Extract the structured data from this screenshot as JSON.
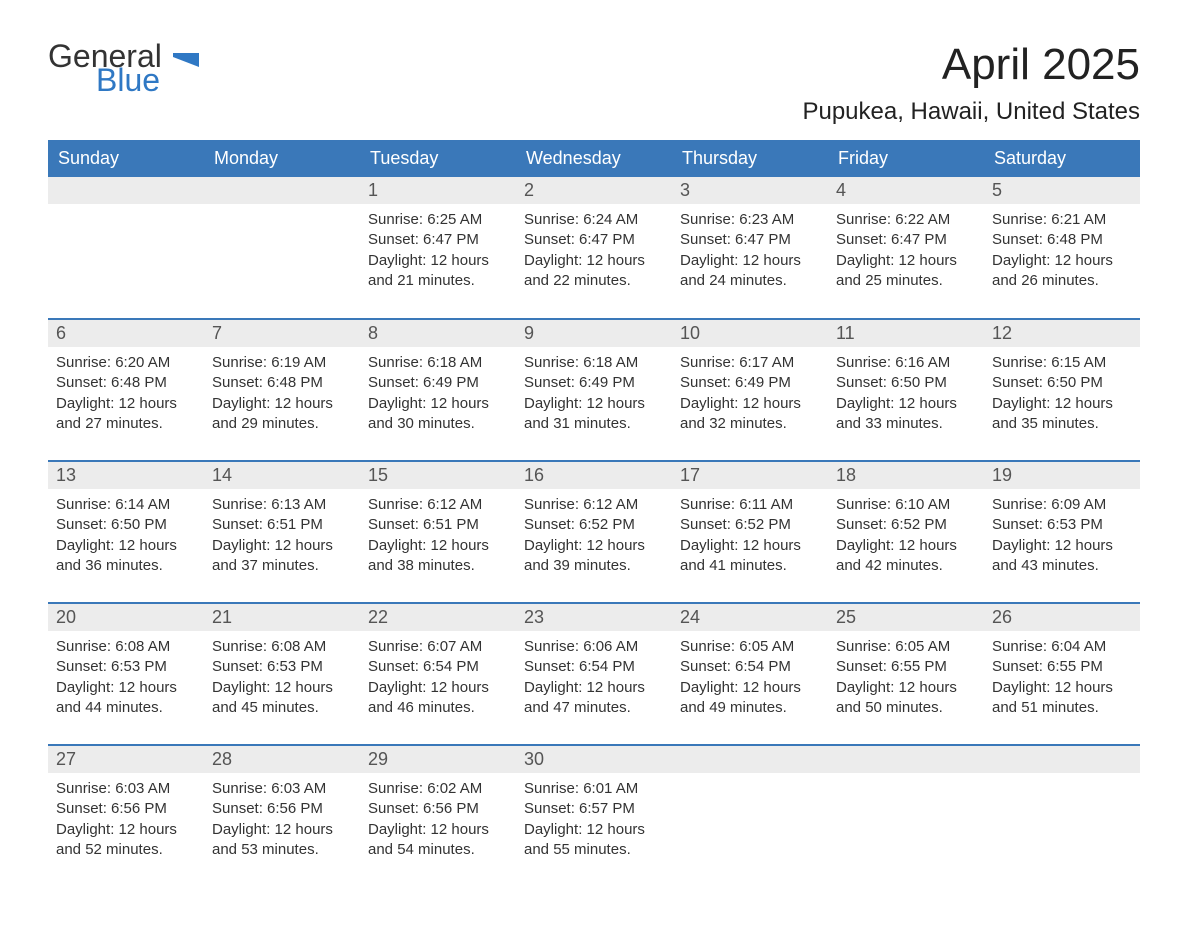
{
  "brand": {
    "general": "General",
    "blue": "Blue"
  },
  "title": "April 2025",
  "location": "Pupukea, Hawaii, United States",
  "colors": {
    "header_bg": "#3a78b9",
    "header_text": "#ffffff",
    "daynum_bg": "#ececec",
    "row_border": "#3a78b9",
    "brand_blue": "#2f78c4",
    "body_text": "#333333",
    "page_bg": "#ffffff"
  },
  "weekdays": [
    "Sunday",
    "Monday",
    "Tuesday",
    "Wednesday",
    "Thursday",
    "Friday",
    "Saturday"
  ],
  "weeks": [
    [
      null,
      null,
      {
        "n": "1",
        "sr": "Sunrise: 6:25 AM",
        "ss": "Sunset: 6:47 PM",
        "d1": "Daylight: 12 hours",
        "d2": "and 21 minutes."
      },
      {
        "n": "2",
        "sr": "Sunrise: 6:24 AM",
        "ss": "Sunset: 6:47 PM",
        "d1": "Daylight: 12 hours",
        "d2": "and 22 minutes."
      },
      {
        "n": "3",
        "sr": "Sunrise: 6:23 AM",
        "ss": "Sunset: 6:47 PM",
        "d1": "Daylight: 12 hours",
        "d2": "and 24 minutes."
      },
      {
        "n": "4",
        "sr": "Sunrise: 6:22 AM",
        "ss": "Sunset: 6:47 PM",
        "d1": "Daylight: 12 hours",
        "d2": "and 25 minutes."
      },
      {
        "n": "5",
        "sr": "Sunrise: 6:21 AM",
        "ss": "Sunset: 6:48 PM",
        "d1": "Daylight: 12 hours",
        "d2": "and 26 minutes."
      }
    ],
    [
      {
        "n": "6",
        "sr": "Sunrise: 6:20 AM",
        "ss": "Sunset: 6:48 PM",
        "d1": "Daylight: 12 hours",
        "d2": "and 27 minutes."
      },
      {
        "n": "7",
        "sr": "Sunrise: 6:19 AM",
        "ss": "Sunset: 6:48 PM",
        "d1": "Daylight: 12 hours",
        "d2": "and 29 minutes."
      },
      {
        "n": "8",
        "sr": "Sunrise: 6:18 AM",
        "ss": "Sunset: 6:49 PM",
        "d1": "Daylight: 12 hours",
        "d2": "and 30 minutes."
      },
      {
        "n": "9",
        "sr": "Sunrise: 6:18 AM",
        "ss": "Sunset: 6:49 PM",
        "d1": "Daylight: 12 hours",
        "d2": "and 31 minutes."
      },
      {
        "n": "10",
        "sr": "Sunrise: 6:17 AM",
        "ss": "Sunset: 6:49 PM",
        "d1": "Daylight: 12 hours",
        "d2": "and 32 minutes."
      },
      {
        "n": "11",
        "sr": "Sunrise: 6:16 AM",
        "ss": "Sunset: 6:50 PM",
        "d1": "Daylight: 12 hours",
        "d2": "and 33 minutes."
      },
      {
        "n": "12",
        "sr": "Sunrise: 6:15 AM",
        "ss": "Sunset: 6:50 PM",
        "d1": "Daylight: 12 hours",
        "d2": "and 35 minutes."
      }
    ],
    [
      {
        "n": "13",
        "sr": "Sunrise: 6:14 AM",
        "ss": "Sunset: 6:50 PM",
        "d1": "Daylight: 12 hours",
        "d2": "and 36 minutes."
      },
      {
        "n": "14",
        "sr": "Sunrise: 6:13 AM",
        "ss": "Sunset: 6:51 PM",
        "d1": "Daylight: 12 hours",
        "d2": "and 37 minutes."
      },
      {
        "n": "15",
        "sr": "Sunrise: 6:12 AM",
        "ss": "Sunset: 6:51 PM",
        "d1": "Daylight: 12 hours",
        "d2": "and 38 minutes."
      },
      {
        "n": "16",
        "sr": "Sunrise: 6:12 AM",
        "ss": "Sunset: 6:52 PM",
        "d1": "Daylight: 12 hours",
        "d2": "and 39 minutes."
      },
      {
        "n": "17",
        "sr": "Sunrise: 6:11 AM",
        "ss": "Sunset: 6:52 PM",
        "d1": "Daylight: 12 hours",
        "d2": "and 41 minutes."
      },
      {
        "n": "18",
        "sr": "Sunrise: 6:10 AM",
        "ss": "Sunset: 6:52 PM",
        "d1": "Daylight: 12 hours",
        "d2": "and 42 minutes."
      },
      {
        "n": "19",
        "sr": "Sunrise: 6:09 AM",
        "ss": "Sunset: 6:53 PM",
        "d1": "Daylight: 12 hours",
        "d2": "and 43 minutes."
      }
    ],
    [
      {
        "n": "20",
        "sr": "Sunrise: 6:08 AM",
        "ss": "Sunset: 6:53 PM",
        "d1": "Daylight: 12 hours",
        "d2": "and 44 minutes."
      },
      {
        "n": "21",
        "sr": "Sunrise: 6:08 AM",
        "ss": "Sunset: 6:53 PM",
        "d1": "Daylight: 12 hours",
        "d2": "and 45 minutes."
      },
      {
        "n": "22",
        "sr": "Sunrise: 6:07 AM",
        "ss": "Sunset: 6:54 PM",
        "d1": "Daylight: 12 hours",
        "d2": "and 46 minutes."
      },
      {
        "n": "23",
        "sr": "Sunrise: 6:06 AM",
        "ss": "Sunset: 6:54 PM",
        "d1": "Daylight: 12 hours",
        "d2": "and 47 minutes."
      },
      {
        "n": "24",
        "sr": "Sunrise: 6:05 AM",
        "ss": "Sunset: 6:54 PM",
        "d1": "Daylight: 12 hours",
        "d2": "and 49 minutes."
      },
      {
        "n": "25",
        "sr": "Sunrise: 6:05 AM",
        "ss": "Sunset: 6:55 PM",
        "d1": "Daylight: 12 hours",
        "d2": "and 50 minutes."
      },
      {
        "n": "26",
        "sr": "Sunrise: 6:04 AM",
        "ss": "Sunset: 6:55 PM",
        "d1": "Daylight: 12 hours",
        "d2": "and 51 minutes."
      }
    ],
    [
      {
        "n": "27",
        "sr": "Sunrise: 6:03 AM",
        "ss": "Sunset: 6:56 PM",
        "d1": "Daylight: 12 hours",
        "d2": "and 52 minutes."
      },
      {
        "n": "28",
        "sr": "Sunrise: 6:03 AM",
        "ss": "Sunset: 6:56 PM",
        "d1": "Daylight: 12 hours",
        "d2": "and 53 minutes."
      },
      {
        "n": "29",
        "sr": "Sunrise: 6:02 AM",
        "ss": "Sunset: 6:56 PM",
        "d1": "Daylight: 12 hours",
        "d2": "and 54 minutes."
      },
      {
        "n": "30",
        "sr": "Sunrise: 6:01 AM",
        "ss": "Sunset: 6:57 PM",
        "d1": "Daylight: 12 hours",
        "d2": "and 55 minutes."
      },
      null,
      null,
      null
    ]
  ]
}
